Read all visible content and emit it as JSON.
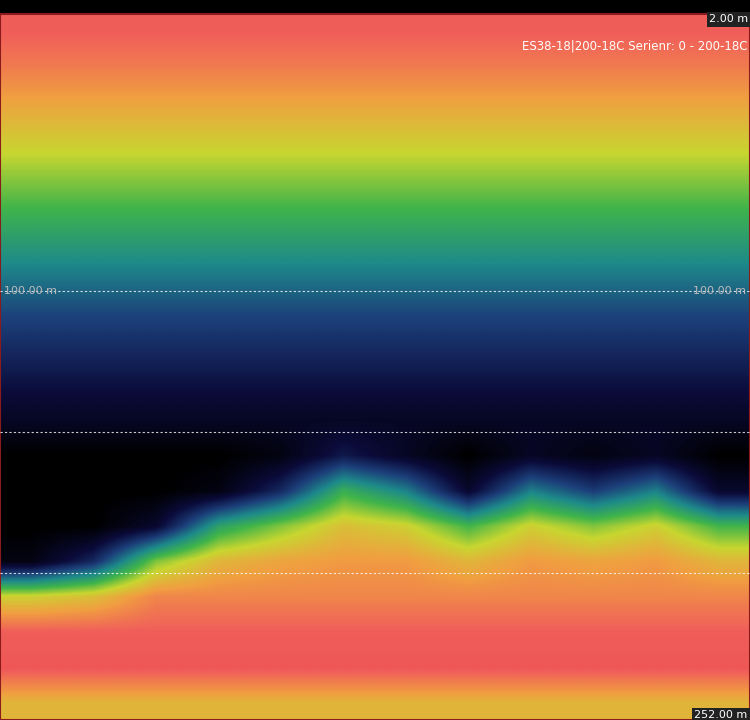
{
  "chart_data": {
    "type": "heatmap",
    "title": "ES38-18|200-18C Serienr: 0 - 200-18C",
    "ylim": [
      252,
      2
    ],
    "yticks": [
      100,
      150,
      200
    ],
    "grid": true,
    "tick_labels": false,
    "depth_labels": [
      {
        "value": 2,
        "label": "2.00 m"
      },
      {
        "value": 100,
        "label": "100.00 m"
      },
      {
        "value": 252,
        "label": "252.00 m"
      }
    ],
    "color_range": [
      -90,
      -40
    ],
    "cells": [
      [
        -55,
        -55,
        -55,
        -55,
        -55,
        -55,
        -55,
        -55,
        -55,
        -55,
        -55,
        -55
      ],
      [
        -45,
        -45,
        -45,
        -45,
        -45,
        -45,
        -45,
        -45,
        -45,
        -45,
        -45,
        -45
      ],
      [
        -46,
        -46,
        -46,
        -46,
        -46,
        -46,
        -46,
        -46,
        -46,
        -46,
        -46,
        -46
      ],
      [
        -58,
        -56,
        -50,
        -50,
        -50,
        -50,
        -50,
        -50,
        -50,
        -50,
        -50,
        -50
      ],
      [
        -88,
        -80,
        -62,
        -55,
        -53,
        -52,
        -52,
        -55,
        -52,
        -53,
        -52,
        -55
      ],
      [
        -90,
        -90,
        -85,
        -68,
        -62,
        -56,
        -58,
        -65,
        -58,
        -62,
        -58,
        -65
      ],
      [
        -90,
        -90,
        -90,
        -88,
        -80,
        -66,
        -72,
        -85,
        -72,
        -78,
        -72,
        -85
      ],
      [
        -90,
        -90,
        -90,
        -90,
        -88,
        -82,
        -86,
        -90,
        -86,
        -88,
        -86,
        -90
      ],
      [
        -86,
        -86,
        -86,
        -86,
        -86,
        -86,
        -86,
        -86,
        -86,
        -86,
        -86,
        -86
      ],
      [
        -83,
        -83,
        -83,
        -83,
        -83,
        -83,
        -83,
        -83,
        -83,
        -83,
        -83,
        -83
      ],
      [
        -80,
        -80,
        -80,
        -80,
        -80,
        -80,
        -80,
        -80,
        -80,
        -80,
        -80,
        -80
      ],
      [
        -77,
        -77,
        -77,
        -77,
        -77,
        -77,
        -77,
        -77,
        -77,
        -77,
        -77,
        -77
      ],
      [
        -73,
        -73,
        -73,
        -73,
        -73,
        -73,
        -73,
        -73,
        -73,
        -73,
        -73,
        -73
      ],
      [
        -69,
        -69,
        -69,
        -69,
        -69,
        -69,
        -69,
        -69,
        -69,
        -69,
        -69,
        -69
      ],
      [
        -65,
        -65,
        -65,
        -65,
        -65,
        -65,
        -65,
        -65,
        -65,
        -65,
        -65,
        -65
      ],
      [
        -61,
        -61,
        -61,
        -61,
        -61,
        -61,
        -61,
        -61,
        -61,
        -61,
        -61,
        -61
      ],
      [
        -57,
        -57,
        -57,
        -57,
        -57,
        -57,
        -57,
        -57,
        -57,
        -57,
        -57,
        -57
      ],
      [
        -53,
        -53,
        -53,
        -53,
        -53,
        -53,
        -53,
        -53,
        -53,
        -53,
        -53,
        -53
      ],
      [
        -49,
        -49,
        -49,
        -49,
        -49,
        -49,
        -49,
        -49,
        -49,
        -49,
        -49,
        -49
      ],
      [
        -46,
        -46,
        -46,
        -46,
        -46,
        -46,
        -46,
        -46,
        -46,
        -46,
        -46,
        -46
      ]
    ]
  }
}
